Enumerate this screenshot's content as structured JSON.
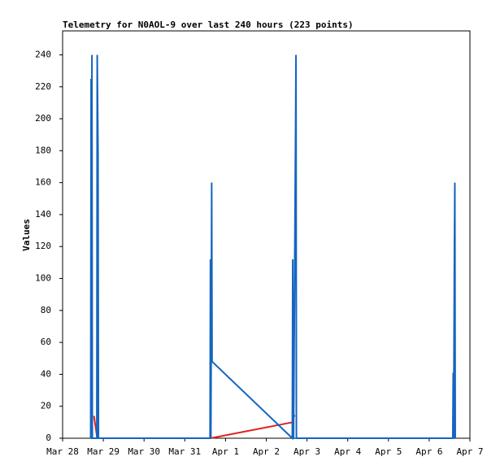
{
  "chart_data": {
    "type": "line",
    "title": "Telemetry for N0AOL-9 over last 240 hours (223 points)",
    "y_label": "Values",
    "xlim": [
      0,
      10
    ],
    "xticks": [
      {
        "value": 0,
        "label": "Mar 28"
      },
      {
        "value": 1,
        "label": "Mar 29"
      },
      {
        "value": 2,
        "label": "Mar 30"
      },
      {
        "value": 3,
        "label": "Mar 31"
      },
      {
        "value": 4,
        "label": "Apr 1"
      },
      {
        "value": 5,
        "label": "Apr 2"
      },
      {
        "value": 6,
        "label": "Apr 3"
      },
      {
        "value": 7,
        "label": "Apr 4"
      },
      {
        "value": 8,
        "label": "Apr 5"
      },
      {
        "value": 9,
        "label": "Apr 6"
      },
      {
        "value": 10,
        "label": "Apr 7"
      }
    ],
    "ylim": [
      0,
      255
    ],
    "yticks": [
      0,
      20,
      40,
      60,
      80,
      100,
      120,
      140,
      160,
      180,
      200,
      220,
      240
    ],
    "series": [
      {
        "color": "#1565c0",
        "x": [
          0.69,
          0.7,
          0.71,
          0.72,
          0.73,
          0.84,
          0.85,
          0.87,
          0.88,
          3.62,
          3.63,
          3.64,
          3.65,
          3.66,
          3.67,
          5.64,
          5.65,
          5.66,
          5.67,
          5.72,
          5.73,
          5.74,
          9.58,
          9.59,
          9.6,
          9.62,
          9.63,
          9.64
        ],
        "values": [
          0,
          225,
          0,
          240,
          0,
          0,
          240,
          177,
          0,
          0,
          112,
          0,
          73,
          160,
          48,
          0,
          112,
          0,
          0,
          193,
          240,
          0,
          0,
          41,
          0,
          120,
          160,
          0
        ]
      },
      {
        "color": "#e02020",
        "x": [
          0.77,
          0.85,
          3.63,
          5.65,
          5.66,
          5.71
        ],
        "values": [
          14,
          0,
          0,
          10,
          14,
          14
        ]
      }
    ]
  }
}
